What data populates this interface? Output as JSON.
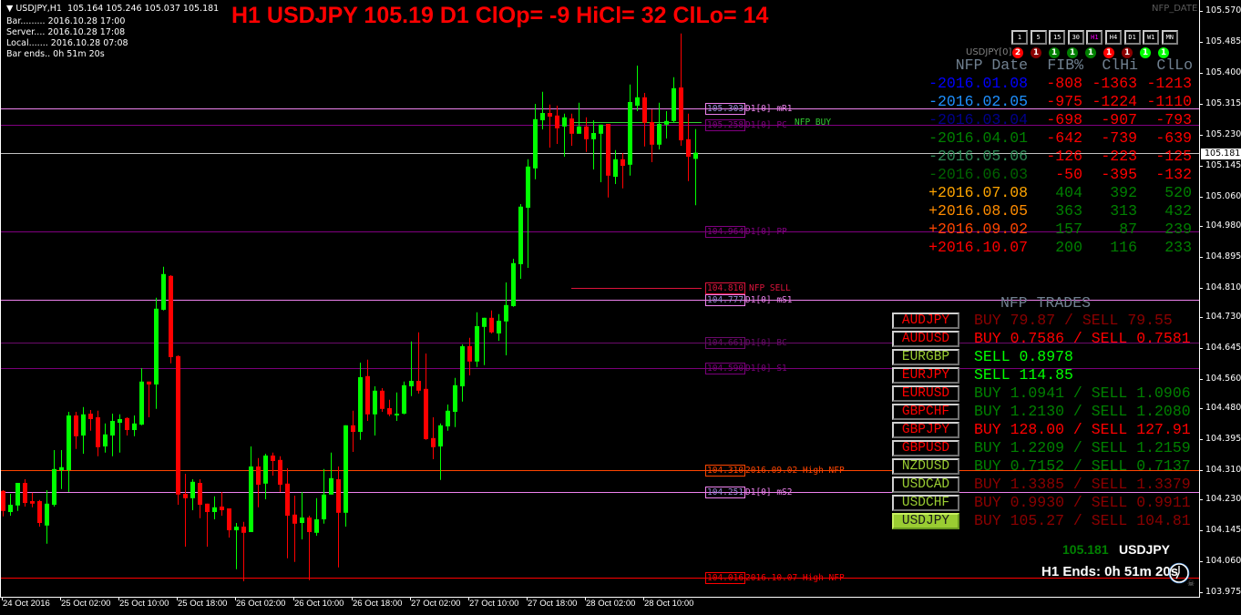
{
  "header": {
    "symbol_line": "USDJPY,H1  105.164 105.246 105.037 105.181",
    "bar": "Bar......... 2016.10.28 17:00",
    "server": "Server.... 2016.10.28 17:08",
    "local": "Local....... 2016.10.28 07:08",
    "bar_ends": "Bar ends.. 0h 51m 20s",
    "title": "H1 USDJPY 105.19 D1 ClOp= -9 HiCl= 32 ClLo= 14",
    "nfp_date_tag": "NFP_DATE"
  },
  "timeframes": [
    {
      "label": "1",
      "active": false
    },
    {
      "label": "5",
      "active": false
    },
    {
      "label": "15",
      "active": false
    },
    {
      "label": "30",
      "active": false
    },
    {
      "label": "H1",
      "active": true
    },
    {
      "label": "H4",
      "active": false
    },
    {
      "label": "D1",
      "active": false
    },
    {
      "label": "W1",
      "active": false
    },
    {
      "label": "MN",
      "active": false
    }
  ],
  "signals": {
    "label": "USDJPY[0]",
    "items": [
      {
        "value": "2",
        "color": "#ff0000"
      },
      {
        "value": "1",
        "color": "#8b0000"
      },
      {
        "value": "1",
        "color": "#008000"
      },
      {
        "value": "1",
        "color": "#008000"
      },
      {
        "value": "1",
        "color": "#008000"
      },
      {
        "value": "1",
        "color": "#ff0000"
      },
      {
        "value": "1",
        "color": "#8b0000"
      },
      {
        "value": "1",
        "color": "#00ff00"
      },
      {
        "value": "1",
        "color": "#00ff00"
      }
    ]
  },
  "nfp_table": {
    "headers": [
      "NFP Date",
      "FIB%",
      "ClHi",
      "ClLo"
    ],
    "header_color": "#708090",
    "rows": [
      {
        "date": "-2016.01.08",
        "date_color": "#0000ff",
        "fib": "-808",
        "clhi": "-1363",
        "cllo": "-1213"
      },
      {
        "date": "-2016.02.05",
        "date_color": "#1e90ff",
        "fib": "-975",
        "clhi": "-1224",
        "cllo": "-1110"
      },
      {
        "date": "-2016.03.04",
        "date_color": "#00008b",
        "fib": "-698",
        "clhi": "-907",
        "cllo": "-793"
      },
      {
        "date": "-2016.04.01",
        "date_color": "#008000",
        "fib": "-642",
        "clhi": "-739",
        "cllo": "-639"
      },
      {
        "date": "-2016.05.06",
        "date_color": "#2e8b57",
        "fib": "-126",
        "clhi": "-223",
        "cllo": "-125"
      },
      {
        "date": "-2016.06.03",
        "date_color": "#006400",
        "fib": "-50",
        "clhi": "-395",
        "cllo": "-132"
      },
      {
        "date": "+2016.07.08",
        "date_color": "#ffa500",
        "fib": "404",
        "clhi": "392",
        "cllo": "520"
      },
      {
        "date": "+2016.08.05",
        "date_color": "#ff8c00",
        "fib": "363",
        "clhi": "313",
        "cllo": "432"
      },
      {
        "date": "+2016.09.02",
        "date_color": "#ff4500",
        "fib": "157",
        "clhi": "87",
        "cllo": "239"
      },
      {
        "date": "+2016.10.07",
        "date_color": "#ff0000",
        "fib": "200",
        "clhi": "116",
        "cllo": "233"
      }
    ],
    "negative_color": "#ff0000",
    "positive_color": "#008000"
  },
  "trades": {
    "title": "NFP TRADES",
    "rows": [
      {
        "pair": "AUDJPY",
        "pair_color": "#ff0000",
        "text": "BUY 79.87 / SELL 79.55",
        "color": "#8b0000",
        "selected": false
      },
      {
        "pair": "AUDUSD",
        "pair_color": "#ff0000",
        "text": "BUY 0.7586 / SELL 0.7581",
        "color": "#ff0000",
        "selected": false
      },
      {
        "pair": "EURGBP",
        "pair_color": "#9acd32",
        "text": "SELL 0.8978",
        "color": "#00ff00",
        "selected": false
      },
      {
        "pair": "EURJPY",
        "pair_color": "#ff0000",
        "text": "SELL 114.85",
        "color": "#00ff00",
        "selected": false
      },
      {
        "pair": "EURUSD",
        "pair_color": "#ff0000",
        "text": "BUY 1.0941 / SELL 1.0906",
        "color": "#008000",
        "selected": false
      },
      {
        "pair": "GBPCHF",
        "pair_color": "#ff0000",
        "text": "BUY 1.2130 / SELL 1.2080",
        "color": "#008000",
        "selected": false
      },
      {
        "pair": "GBPJPY",
        "pair_color": "#ff0000",
        "text": "BUY 128.00 / SELL 127.91",
        "color": "#ff0000",
        "selected": false
      },
      {
        "pair": "GBPUSD",
        "pair_color": "#ff0000",
        "text": "BUY 1.2209 / SELL 1.2159",
        "color": "#008000",
        "selected": false
      },
      {
        "pair": "NZDUSD",
        "pair_color": "#9acd32",
        "text": "BUY 0.7152 / SELL 0.7137",
        "color": "#008000",
        "selected": false
      },
      {
        "pair": "USDCAD",
        "pair_color": "#9acd32",
        "text": "BUY 1.3385 / SELL 1.3379",
        "color": "#8b0000",
        "selected": false
      },
      {
        "pair": "USDCHF",
        "pair_color": "#9acd32",
        "text": "BUY 0.9930 / SELL 0.9911",
        "color": "#8b0000",
        "selected": false
      },
      {
        "pair": "USDJPY",
        "pair_color": "#1a1a1a",
        "text": "BUY 105.27 / SELL 104.81",
        "color": "#8b0000",
        "selected": true
      }
    ]
  },
  "footer": {
    "price": "105.181",
    "symbol": "USDJPY",
    "ends": "H1 Ends: 0h 51m 20s",
    "price_color": "#008000"
  },
  "levels": [
    {
      "price": 105.303,
      "value": "105.303",
      "text": "D1[0] mR1",
      "color": "#ee82ee",
      "short": false
    },
    {
      "price": 105.258,
      "value": "105.258",
      "text": "D1[0] PC",
      "color": "#800080",
      "short": false
    },
    {
      "price": 105.266,
      "value": "",
      "text": "NFP BUY",
      "color": "#32cd32",
      "short": true
    },
    {
      "price": 104.964,
      "value": "104.964",
      "text": "D1[0] PP",
      "color": "#800080",
      "short": false
    },
    {
      "price": 104.81,
      "value": "104.810",
      "text": "NFP SELL",
      "color": "#dc143c",
      "short": true
    },
    {
      "price": 104.777,
      "value": "104.777",
      "text": "D1[0] mS1",
      "color": "#ee82ee",
      "short": false
    },
    {
      "price": 104.661,
      "value": "104.661",
      "text": "D1[0] BC",
      "color": "#6a0a6a",
      "short": false
    },
    {
      "price": 104.59,
      "value": "104.590",
      "text": "D1[0] S1",
      "color": "#7a007a",
      "short": false
    },
    {
      "price": 104.31,
      "value": "104.310",
      "text": "2016.09.02 High NFP",
      "color": "#ff4500",
      "short": false
    },
    {
      "price": 104.251,
      "value": "104.251",
      "text": "D1[0] mS2",
      "color": "#ee82ee",
      "short": false
    },
    {
      "price": 104.016,
      "value": "104.016",
      "text": "2016.10.07 High NFP",
      "color": "#ff0000",
      "short": false
    }
  ],
  "chart_data": {
    "type": "candlestick",
    "symbol": "USDJPY",
    "timeframe": "H1",
    "ylim": [
      103.96,
      105.6
    ],
    "current_price": 105.181,
    "current_price_label": "105.181",
    "up_color": "#00ff00",
    "down_color": "#ff0000",
    "grid": false,
    "y_ticks": [
      "105.570",
      "105.485",
      "105.400",
      "105.315",
      "105.230",
      "105.145",
      "105.060",
      "104.980",
      "104.895",
      "104.810",
      "104.730",
      "104.645",
      "104.560",
      "104.480",
      "104.395",
      "104.310",
      "104.230",
      "104.145",
      "104.060",
      "103.975"
    ],
    "x_ticks": [
      "24 Oct 2016",
      "25 Oct 02:00",
      "25 Oct 10:00",
      "25 Oct 18:00",
      "26 Oct 02:00",
      "26 Oct 10:00",
      "26 Oct 18:00",
      "27 Oct 02:00",
      "27 Oct 10:00",
      "27 Oct 18:00",
      "28 Oct 02:00",
      "28 Oct 10:00"
    ],
    "ohlc": [
      [
        104.253,
        104.255,
        104.183,
        104.198
      ],
      [
        104.195,
        104.245,
        104.185,
        104.215
      ],
      [
        104.213,
        104.275,
        104.198,
        104.275
      ],
      [
        104.275,
        104.285,
        104.21,
        104.22
      ],
      [
        104.225,
        104.248,
        104.208,
        104.218
      ],
      [
        104.225,
        104.228,
        104.155,
        104.165
      ],
      [
        104.158,
        104.255,
        104.108,
        104.218
      ],
      [
        104.215,
        104.365,
        104.21,
        104.313
      ],
      [
        104.31,
        104.365,
        104.258,
        104.318
      ],
      [
        104.31,
        104.47,
        104.25,
        104.46
      ],
      [
        104.46,
        104.47,
        104.368,
        104.403
      ],
      [
        104.405,
        104.483,
        104.355,
        104.463
      ],
      [
        104.465,
        104.475,
        104.418,
        104.45
      ],
      [
        104.455,
        104.473,
        104.348,
        104.373
      ],
      [
        104.375,
        104.438,
        104.358,
        104.408
      ],
      [
        104.405,
        104.465,
        104.348,
        104.445
      ],
      [
        104.44,
        104.463,
        104.358,
        104.45
      ],
      [
        104.453,
        104.455,
        104.405,
        104.42
      ],
      [
        104.42,
        104.46,
        104.403,
        104.438
      ],
      [
        104.435,
        104.59,
        104.433,
        104.553
      ],
      [
        104.553,
        104.553,
        104.455,
        104.545
      ],
      [
        104.545,
        104.783,
        104.478,
        104.753
      ],
      [
        104.75,
        104.868,
        104.748,
        104.848
      ],
      [
        104.843,
        104.845,
        104.603,
        104.62
      ],
      [
        104.623,
        104.625,
        104.215,
        104.243
      ],
      [
        104.245,
        104.3,
        104.1,
        104.233
      ],
      [
        104.233,
        104.285,
        104.2,
        104.278
      ],
      [
        104.275,
        104.285,
        104.178,
        104.215
      ],
      [
        104.218,
        104.218,
        104.1,
        104.195
      ],
      [
        104.195,
        104.238,
        104.175,
        104.208
      ],
      [
        104.21,
        104.25,
        104.185,
        104.2
      ],
      [
        104.205,
        104.205,
        104.125,
        104.145
      ],
      [
        104.145,
        104.165,
        104.038,
        104.155
      ],
      [
        104.155,
        104.168,
        104.005,
        104.138
      ],
      [
        104.14,
        104.375,
        104.14,
        104.32
      ],
      [
        104.32,
        104.343,
        104.208,
        104.27
      ],
      [
        104.273,
        104.355,
        104.23,
        104.35
      ],
      [
        104.35,
        104.358,
        104.295,
        104.335
      ],
      [
        104.338,
        104.348,
        104.25,
        104.27
      ],
      [
        104.273,
        104.315,
        104.068,
        104.185
      ],
      [
        104.188,
        104.24,
        104.058,
        104.163
      ],
      [
        104.165,
        104.25,
        104.12,
        104.18
      ],
      [
        104.18,
        104.185,
        104.008,
        104.14
      ],
      [
        104.138,
        104.233,
        104.13,
        104.175
      ],
      [
        104.175,
        104.313,
        104.163,
        104.243
      ],
      [
        104.243,
        104.358,
        104.243,
        104.288
      ],
      [
        104.285,
        104.32,
        104.043,
        104.193
      ],
      [
        104.193,
        104.433,
        104.155,
        104.433
      ],
      [
        104.433,
        104.473,
        104.36,
        104.415
      ],
      [
        104.415,
        104.605,
        104.393,
        104.565
      ],
      [
        104.568,
        104.613,
        104.445,
        104.463
      ],
      [
        104.463,
        104.54,
        104.405,
        104.528
      ],
      [
        104.528,
        104.535,
        104.47,
        104.478
      ],
      [
        104.48,
        104.503,
        104.458,
        104.463
      ],
      [
        104.46,
        104.523,
        104.445,
        104.465
      ],
      [
        104.465,
        104.553,
        104.463,
        104.543
      ],
      [
        104.54,
        104.663,
        104.513,
        104.555
      ],
      [
        104.555,
        104.688,
        104.52,
        104.528
      ],
      [
        104.533,
        104.63,
        104.393,
        104.395
      ],
      [
        104.398,
        104.455,
        104.34,
        104.373
      ],
      [
        104.375,
        104.438,
        104.283,
        104.433
      ],
      [
        104.43,
        104.49,
        104.418,
        104.473
      ],
      [
        104.47,
        104.563,
        104.428,
        104.543
      ],
      [
        104.54,
        104.655,
        104.498,
        104.65
      ],
      [
        104.65,
        104.673,
        104.57,
        104.608
      ],
      [
        104.608,
        104.743,
        104.593,
        104.705
      ],
      [
        104.703,
        104.728,
        104.598,
        104.728
      ],
      [
        104.728,
        104.748,
        104.685,
        104.688
      ],
      [
        104.685,
        104.738,
        104.665,
        104.72
      ],
      [
        104.718,
        104.825,
        104.625,
        104.763
      ],
      [
        104.76,
        104.89,
        104.758,
        104.878
      ],
      [
        104.875,
        105.04,
        104.835,
        105.033
      ],
      [
        105.03,
        105.163,
        104.865,
        105.143
      ],
      [
        105.138,
        105.315,
        105.108,
        105.273
      ],
      [
        105.27,
        105.348,
        105.245,
        105.29
      ],
      [
        105.29,
        105.313,
        105.195,
        105.28
      ],
      [
        105.283,
        105.31,
        105.205,
        105.248
      ],
      [
        105.253,
        105.288,
        105.17,
        105.278
      ],
      [
        105.275,
        105.288,
        105.2,
        105.233
      ],
      [
        105.233,
        105.318,
        105.233,
        105.253
      ],
      [
        105.253,
        105.278,
        105.183,
        105.218
      ],
      [
        105.218,
        105.27,
        105.135,
        105.235
      ],
      [
        105.233,
        105.258,
        105.1,
        105.258
      ],
      [
        105.26,
        105.26,
        105.058,
        105.118
      ],
      [
        105.115,
        105.188,
        105.095,
        105.163
      ],
      [
        105.163,
        105.18,
        105.083,
        105.145
      ],
      [
        105.148,
        105.368,
        105.118,
        105.32
      ],
      [
        105.31,
        105.42,
        105.295,
        105.333
      ],
      [
        105.333,
        105.345,
        105.198,
        105.263
      ],
      [
        105.265,
        105.3,
        105.155,
        105.203
      ],
      [
        105.203,
        105.318,
        105.19,
        105.26
      ],
      [
        105.258,
        105.295,
        105.22,
        105.268
      ],
      [
        105.268,
        105.388,
        105.263,
        105.358
      ],
      [
        105.36,
        105.508,
        105.2,
        105.215
      ],
      [
        105.218,
        105.288,
        105.103,
        105.17
      ],
      [
        105.164,
        105.246,
        105.037,
        105.181
      ]
    ]
  }
}
